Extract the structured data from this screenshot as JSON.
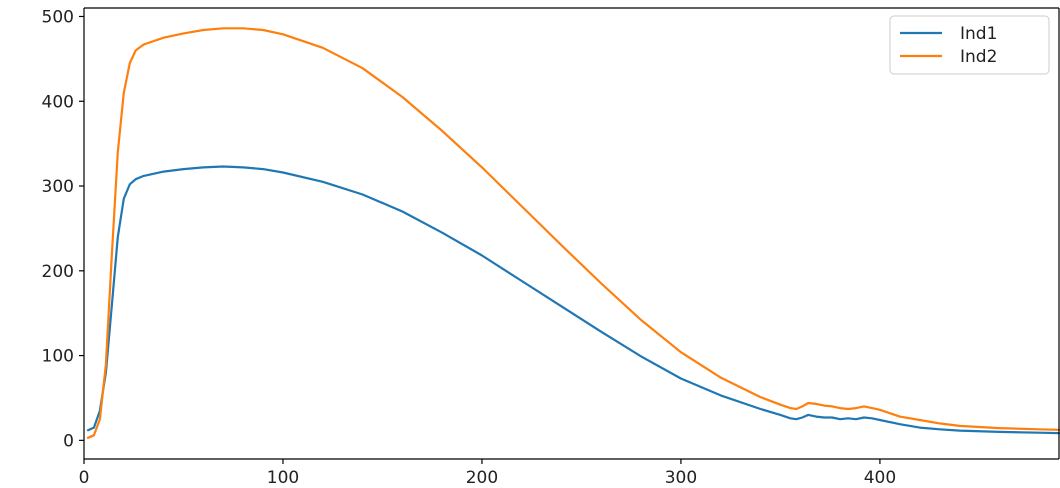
{
  "chart_data": {
    "type": "line",
    "title": "",
    "xlabel": "",
    "ylabel": "",
    "xlim": [
      0,
      490
    ],
    "ylim": [
      -22,
      510
    ],
    "x_ticks": [
      0,
      100,
      200,
      300,
      400
    ],
    "y_ticks": [
      0,
      100,
      200,
      300,
      400,
      500
    ],
    "x_tick_labels": [
      "0",
      "100",
      "200",
      "300",
      "400"
    ],
    "y_tick_labels": [
      "0",
      "100",
      "200",
      "300",
      "400",
      "500"
    ],
    "grid": false,
    "legend_placement": "top-right",
    "series": [
      {
        "name": "Ind1",
        "color": "#1f77b4",
        "points": [
          [
            2,
            12
          ],
          [
            5,
            15
          ],
          [
            8,
            35
          ],
          [
            11,
            80
          ],
          [
            14,
            160
          ],
          [
            17,
            240
          ],
          [
            20,
            285
          ],
          [
            23,
            302
          ],
          [
            26,
            308
          ],
          [
            30,
            312
          ],
          [
            40,
            317
          ],
          [
            50,
            320
          ],
          [
            60,
            322
          ],
          [
            70,
            323
          ],
          [
            80,
            322
          ],
          [
            90,
            320
          ],
          [
            100,
            316
          ],
          [
            120,
            305
          ],
          [
            140,
            290
          ],
          [
            160,
            270
          ],
          [
            180,
            245
          ],
          [
            200,
            218
          ],
          [
            220,
            188
          ],
          [
            240,
            158
          ],
          [
            260,
            128
          ],
          [
            280,
            99
          ],
          [
            300,
            73
          ],
          [
            320,
            53
          ],
          [
            340,
            37
          ],
          [
            350,
            30
          ],
          [
            355,
            26
          ],
          [
            358,
            25
          ],
          [
            361,
            27
          ],
          [
            364,
            30
          ],
          [
            368,
            28
          ],
          [
            372,
            27
          ],
          [
            376,
            27
          ],
          [
            380,
            25
          ],
          [
            384,
            26
          ],
          [
            388,
            25
          ],
          [
            392,
            27
          ],
          [
            396,
            26
          ],
          [
            400,
            24
          ],
          [
            410,
            19
          ],
          [
            420,
            15
          ],
          [
            430,
            13
          ],
          [
            440,
            11.5
          ],
          [
            460,
            10
          ],
          [
            480,
            9
          ],
          [
            490,
            8.5
          ]
        ]
      },
      {
        "name": "Ind2",
        "color": "#ff7f0e",
        "points": [
          [
            2,
            3
          ],
          [
            5,
            6
          ],
          [
            8,
            25
          ],
          [
            11,
            90
          ],
          [
            14,
            220
          ],
          [
            17,
            340
          ],
          [
            20,
            410
          ],
          [
            23,
            445
          ],
          [
            26,
            460
          ],
          [
            30,
            467
          ],
          [
            40,
            475
          ],
          [
            50,
            480
          ],
          [
            60,
            484
          ],
          [
            70,
            486
          ],
          [
            80,
            486
          ],
          [
            90,
            484
          ],
          [
            100,
            479
          ],
          [
            120,
            463
          ],
          [
            140,
            439
          ],
          [
            160,
            405
          ],
          [
            180,
            365
          ],
          [
            200,
            322
          ],
          [
            220,
            276
          ],
          [
            240,
            230
          ],
          [
            260,
            185
          ],
          [
            280,
            142
          ],
          [
            300,
            104
          ],
          [
            320,
            74
          ],
          [
            340,
            51
          ],
          [
            350,
            42
          ],
          [
            355,
            38
          ],
          [
            358,
            37
          ],
          [
            361,
            40
          ],
          [
            364,
            44
          ],
          [
            368,
            43
          ],
          [
            372,
            41
          ],
          [
            376,
            40
          ],
          [
            380,
            38
          ],
          [
            384,
            37
          ],
          [
            388,
            38
          ],
          [
            392,
            40
          ],
          [
            396,
            38
          ],
          [
            400,
            36
          ],
          [
            410,
            28
          ],
          [
            420,
            24
          ],
          [
            430,
            20
          ],
          [
            440,
            17
          ],
          [
            460,
            14.5
          ],
          [
            480,
            13
          ],
          [
            490,
            12.5
          ]
        ]
      }
    ]
  }
}
